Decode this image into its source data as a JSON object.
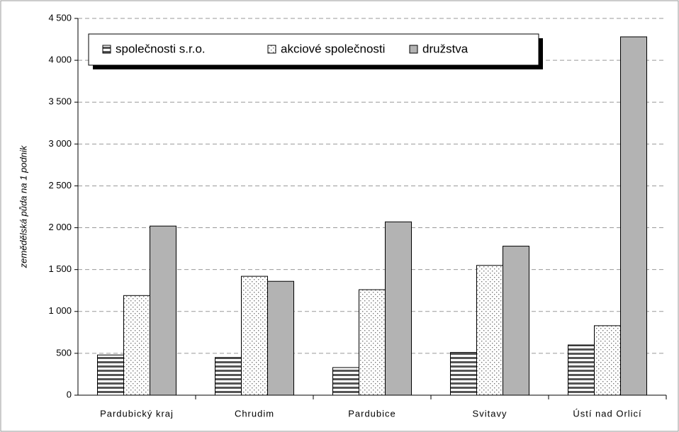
{
  "chart_data": {
    "type": "bar",
    "y_label": "zemědělská půda na 1 podnik",
    "categories": [
      "Pardubický kraj",
      "Chrudim",
      "Pardubice",
      "Svitavy",
      "Ústí nad Orlicí"
    ],
    "series": [
      {
        "name": "společnosti s.r.o.",
        "color": "#555555",
        "pattern": "stripes",
        "values": [
          480,
          450,
          330,
          510,
          600
        ]
      },
      {
        "name": "akciové společnosti",
        "color": "#777777",
        "pattern": "dots",
        "values": [
          1190,
          1420,
          1260,
          1550,
          830
        ]
      },
      {
        "name": "družstva",
        "color": "#b3b3b3",
        "pattern": "solid",
        "values": [
          2020,
          1360,
          2070,
          1780,
          4280
        ]
      }
    ],
    "ylim": [
      0,
      4500
    ],
    "yticks": [
      0,
      500,
      {
        "value": 1000,
        "label": "1 000"
      },
      {
        "value": 1500,
        "label": "1 500"
      },
      {
        "value": 2000,
        "label": "2 000"
      },
      {
        "value": 2500,
        "label": "2 500"
      },
      {
        "value": 3000,
        "label": "3 000"
      },
      {
        "value": 3500,
        "label": "3 500"
      },
      {
        "value": 4000,
        "label": "4 000"
      },
      {
        "value": 4500,
        "label": "4 500"
      }
    ],
    "grid": true,
    "legend": "top-left"
  }
}
